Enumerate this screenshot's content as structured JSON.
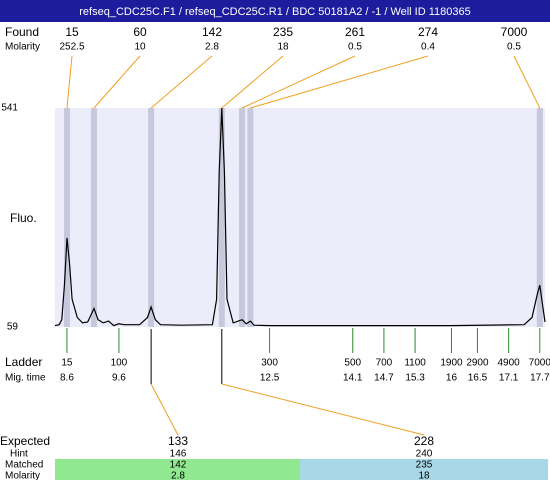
{
  "header": {
    "title": "refseq_CDC25C.F1 / refseq_CDC25C.R1 / BDC 50181A2 / -1 / Well ID 1180365"
  },
  "found": {
    "label": "Found",
    "molarity_label": "Molarity",
    "peaks": [
      {
        "size": 15,
        "molarity": 252.5,
        "time": 8.6
      },
      {
        "size": 60,
        "molarity": 10,
        "time": 9.12
      },
      {
        "size": 142,
        "molarity": 2.8,
        "time": 10.22
      },
      {
        "size": 235,
        "molarity": 18,
        "time": 11.58
      },
      {
        "size": 261,
        "molarity": 0.5,
        "time": 11.97
      },
      {
        "size": 274,
        "molarity": 0.4,
        "time": 12.13
      },
      {
        "size": 7000,
        "molarity": 0.5,
        "time": 17.7
      }
    ]
  },
  "chart_data": {
    "type": "line",
    "ylabel": "Fluo.",
    "color": "#000000",
    "x": [
      8.37,
      8.45,
      8.5,
      8.55,
      8.6,
      8.65,
      8.7,
      8.8,
      8.9,
      9.0,
      9.12,
      9.2,
      9.3,
      9.4,
      9.5,
      9.6,
      9.7,
      10.0,
      10.15,
      10.22,
      10.3,
      10.4,
      10.8,
      11.4,
      11.48,
      11.53,
      11.58,
      11.63,
      11.68,
      11.8,
      11.97,
      12.05,
      12.13,
      12.2,
      12.5,
      14.0,
      16.0,
      17.4,
      17.55,
      17.65,
      17.7,
      17.75,
      17.8
    ],
    "values": [
      62,
      64,
      75,
      150,
      255,
      200,
      120,
      80,
      68,
      70,
      100,
      75,
      68,
      72,
      62,
      66,
      64,
      64,
      80,
      103,
      75,
      64,
      63,
      64,
      120,
      400,
      541,
      400,
      120,
      68,
      75,
      66,
      72,
      63,
      62,
      62,
      62,
      64,
      80,
      130,
      151,
      110,
      70
    ],
    "xlim": [
      8.37,
      17.8
    ],
    "ylim": [
      59,
      541
    ],
    "yticks": [
      59,
      541
    ]
  },
  "ladder": {
    "label": "Ladder",
    "time_label": "Mig. time",
    "sizes": [
      15,
      100,
      300,
      500,
      700,
      1100,
      1900,
      2900,
      4900,
      7000
    ],
    "times": [
      8.6,
      9.6,
      12.5,
      14.1,
      14.7,
      15.3,
      16,
      16.5,
      17.1,
      17.7
    ]
  },
  "expected": {
    "label": "Expected",
    "hint_label": "Hint",
    "matched_label": "Matched",
    "molarity_label": "Molarity",
    "columns": [
      {
        "expected": 133,
        "hint": 146,
        "matched": 142,
        "molarity": 2.8
      },
      {
        "expected": 228,
        "hint": 240,
        "matched": 235,
        "molarity": 18
      }
    ]
  }
}
